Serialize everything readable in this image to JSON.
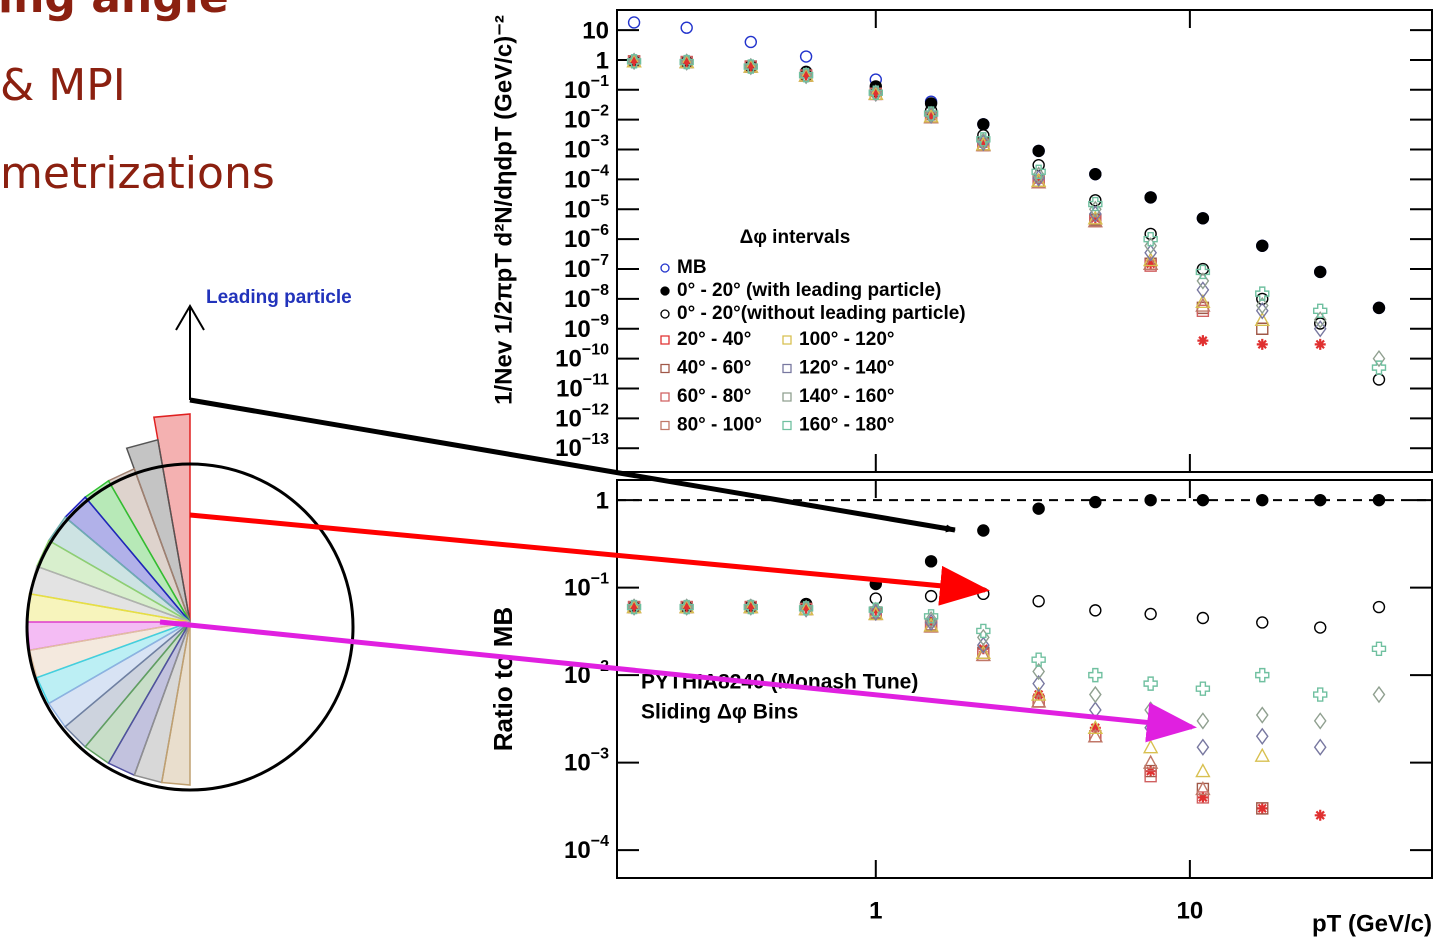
{
  "slide": {
    "title_fragment": "ing angle",
    "bullets": [
      "& MPI",
      "metrizations"
    ]
  },
  "diagram": {
    "label": "Leading particle"
  },
  "chart_data": [
    {
      "type": "scatter",
      "log_x": true,
      "log_y": true,
      "ylabel": "1/Nev 1/2πpT d²N/dηdpT (GeV/c)⁻²",
      "legend_title": "Δφ intervals",
      "x": [
        0.17,
        0.25,
        0.4,
        0.6,
        1,
        1.5,
        2.2,
        3.3,
        5,
        7.5,
        11,
        17,
        26,
        40
      ],
      "xlim": [
        0.15,
        59
      ],
      "xticks": [
        1,
        10
      ],
      "ylim": [
        1.6e-14,
        47
      ],
      "yticks": [
        10,
        1,
        {
          "value": 0.1,
          "label": "10−1"
        },
        {
          "value": 0.01,
          "label": "10−2"
        },
        {
          "value": 0.001,
          "label": "10−3"
        },
        {
          "value": 0.0001,
          "label": "10−4"
        },
        {
          "value": 1e-05,
          "label": "10−5"
        },
        {
          "value": 1e-06,
          "label": "10−6"
        },
        {
          "value": 1e-07,
          "label": "10−7"
        },
        {
          "value": 1e-08,
          "label": "10−8"
        },
        {
          "value": 1e-09,
          "label": "10−9"
        },
        {
          "value": 1e-10,
          "label": "10−10"
        },
        {
          "value": 1e-11,
          "label": "10−11"
        },
        {
          "value": 1e-12,
          "label": "10−12"
        },
        {
          "value": 1e-13,
          "label": "10−13"
        }
      ],
      "series": [
        {
          "name": "MB",
          "color": "#2233cc",
          "marker": "circle-open",
          "values": [
            18,
            12,
            4,
            1.3,
            0.22,
            0.04,
            0.007,
            0.0009,
            0.00015,
            2.5e-05,
            5e-06,
            6e-07,
            8e-08,
            5e-09
          ]
        },
        {
          "name": "0° - 20° (with leading particle)",
          "color": "#000000",
          "marker": "circle",
          "values": [
            0.9,
            0.85,
            0.65,
            0.4,
            0.13,
            0.035,
            0.007,
            0.0009,
            0.00015,
            2.5e-05,
            5e-06,
            6e-07,
            8e-08,
            5e-09
          ]
        },
        {
          "name": "0° - 20°(without leading particle)",
          "color": "#000000",
          "marker": "circle-open",
          "values": [
            0.9,
            0.85,
            0.6,
            0.3,
            0.09,
            0.02,
            0.003,
            0.0003,
            2e-05,
            1.5e-06,
            1e-07,
            1e-08,
            1.5e-09,
            2e-11
          ]
        },
        {
          "name": "20° - 40°",
          "color": "#e03030",
          "marker": "asterisk",
          "values": [
            0.9,
            0.85,
            0.6,
            0.3,
            0.075,
            0.013,
            0.0016,
            0.0001,
            5e-06,
            1.5e-07,
            4e-10,
            3e-10,
            3e-10,
            null
          ]
        },
        {
          "name": "40° - 60°",
          "color": "#a05848",
          "marker": "square-open",
          "values": [
            0.9,
            0.85,
            0.6,
            0.3,
            0.074,
            0.012,
            0.0015,
            9e-05,
            4.5e-06,
            1.5e-07,
            5e-09,
            1e-09,
            null,
            null
          ]
        },
        {
          "name": "60° - 80°",
          "color": "#d06060",
          "marker": "square-open",
          "values": [
            0.9,
            0.85,
            0.6,
            0.3,
            0.073,
            0.012,
            0.0014,
            8e-05,
            4e-06,
            1.3e-07,
            4e-09,
            null,
            null,
            null
          ]
        },
        {
          "name": "80° - 100°",
          "color": "#c07868",
          "marker": "triangle-open",
          "values": [
            0.9,
            0.85,
            0.6,
            0.3,
            0.073,
            0.012,
            0.0014,
            8e-05,
            4e-06,
            1.5e-07,
            6e-09,
            null,
            null,
            null
          ]
        },
        {
          "name": "100° - 120°",
          "color": "#d8c050",
          "marker": "triangle-open",
          "values": [
            0.9,
            0.85,
            0.6,
            0.3,
            0.074,
            0.013,
            0.0015,
            9e-05,
            5e-06,
            2e-07,
            8e-09,
            2e-09,
            null,
            null
          ]
        },
        {
          "name": "120° - 140°",
          "color": "#7878a0",
          "marker": "diamond-open",
          "values": [
            0.9,
            0.85,
            0.6,
            0.3,
            0.076,
            0.014,
            0.0017,
            0.00011,
            7e-06,
            3.5e-07,
            2e-08,
            4e-09,
            1e-09,
            null
          ]
        },
        {
          "name": "140° - 160°",
          "color": "#90a090",
          "marker": "diamond-open",
          "values": [
            0.9,
            0.85,
            0.6,
            0.3,
            0.078,
            0.015,
            0.0019,
            0.00014,
            1e-05,
            6e-07,
            4e-08,
            6e-09,
            2e-09,
            1e-10
          ]
        },
        {
          "name": "160° - 180°",
          "color": "#70c0a0",
          "marker": "cross-open",
          "values": [
            0.9,
            0.85,
            0.6,
            0.31,
            0.08,
            0.016,
            0.0022,
            0.00018,
            1.5e-05,
            1e-06,
            8e-08,
            1.5e-08,
            4e-09,
            5e-11
          ]
        }
      ]
    },
    {
      "type": "scatter",
      "log_x": true,
      "log_y": true,
      "ylabel": "Ratio to MB",
      "xlabel": "pT (GeV/c)",
      "annotations": [
        "PYTHIA8240 (Monash Tune)",
        "Sliding Δφ Bins"
      ],
      "x": [
        0.17,
        0.25,
        0.4,
        0.6,
        1,
        1.5,
        2.2,
        3.3,
        5,
        7.5,
        11,
        17,
        26,
        40
      ],
      "xlim": [
        0.15,
        59
      ],
      "xticks": [
        1,
        10
      ],
      "ylim": [
        4.8e-05,
        1.7
      ],
      "yticks": [
        1,
        {
          "value": 0.1,
          "label": "10−1"
        },
        {
          "value": 0.01,
          "label": "10−2"
        },
        {
          "value": 0.001,
          "label": "10−3"
        },
        {
          "value": 0.0001,
          "label": "10−4"
        }
      ],
      "series": [
        {
          "color": "#000000",
          "marker": "circle",
          "values": [
            0.06,
            0.06,
            0.062,
            0.065,
            0.11,
            0.2,
            0.45,
            0.8,
            0.95,
            1,
            1,
            1,
            1,
            1
          ]
        },
        {
          "color": "#000000",
          "marker": "circle-open",
          "values": [
            0.06,
            0.06,
            0.06,
            0.065,
            0.075,
            0.08,
            0.085,
            0.07,
            0.055,
            0.05,
            0.045,
            0.04,
            0.035,
            0.06
          ]
        },
        {
          "color": "#e03030",
          "marker": "asterisk",
          "values": [
            0.06,
            0.06,
            0.06,
            0.058,
            0.055,
            0.04,
            0.02,
            0.006,
            0.0025,
            0.0008,
            0.0004,
            0.0003,
            0.00025,
            null
          ]
        },
        {
          "color": "#a05848",
          "marker": "square-open",
          "values": [
            0.06,
            0.06,
            0.06,
            0.057,
            0.052,
            0.038,
            0.018,
            0.005,
            0.002,
            0.0008,
            0.0005,
            0.0003,
            null,
            null
          ]
        },
        {
          "color": "#d06060",
          "marker": "square-open",
          "values": [
            0.06,
            0.06,
            0.06,
            0.057,
            0.05,
            0.036,
            0.017,
            0.005,
            0.002,
            0.0007,
            0.0004,
            null,
            null,
            null
          ]
        },
        {
          "color": "#c07868",
          "marker": "triangle-open",
          "values": [
            0.06,
            0.06,
            0.06,
            0.057,
            0.05,
            0.036,
            0.017,
            0.005,
            0.002,
            0.001,
            0.0005,
            null,
            null,
            null
          ]
        },
        {
          "color": "#d8c050",
          "marker": "triangle-open",
          "values": [
            0.06,
            0.06,
            0.06,
            0.057,
            0.05,
            0.037,
            0.018,
            0.006,
            0.0025,
            0.0015,
            0.0008,
            0.0012,
            null,
            null
          ]
        },
        {
          "color": "#7878a0",
          "marker": "diamond-open",
          "values": [
            0.06,
            0.06,
            0.06,
            0.057,
            0.052,
            0.04,
            0.022,
            0.008,
            0.004,
            0.0025,
            0.0015,
            0.002,
            0.0015,
            null
          ]
        },
        {
          "color": "#90a090",
          "marker": "diamond-open",
          "values": [
            0.06,
            0.06,
            0.06,
            0.058,
            0.055,
            0.043,
            0.027,
            0.011,
            0.006,
            0.004,
            0.003,
            0.0035,
            0.003,
            0.006
          ]
        },
        {
          "color": "#70c0a0",
          "marker": "cross-open",
          "values": [
            0.06,
            0.06,
            0.06,
            0.058,
            0.056,
            0.047,
            0.032,
            0.015,
            0.01,
            0.008,
            0.007,
            0.01,
            0.006,
            0.02
          ]
        }
      ]
    }
  ]
}
